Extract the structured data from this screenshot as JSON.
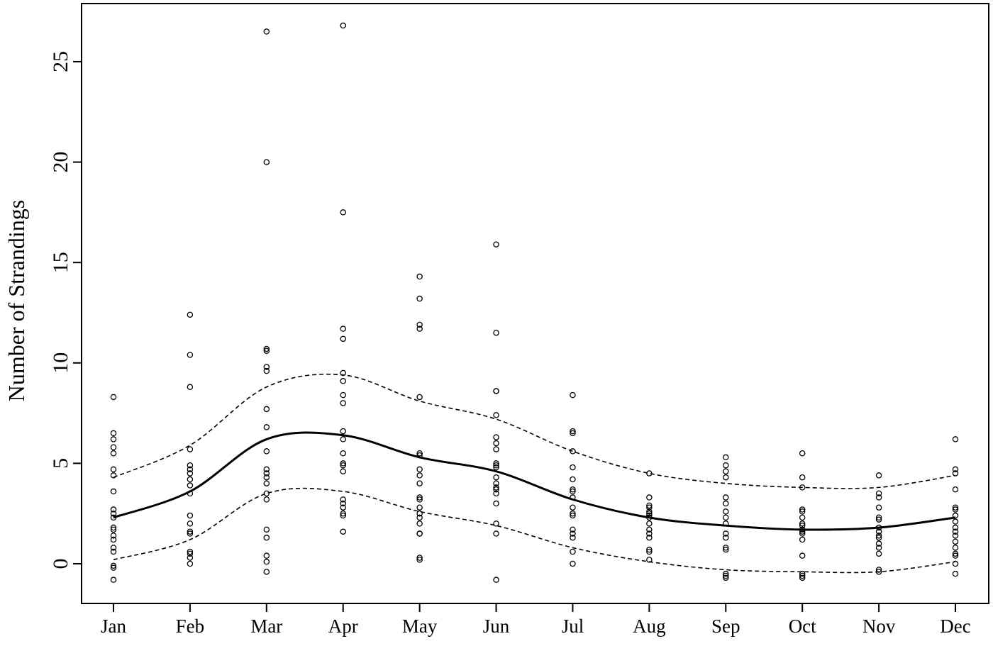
{
  "chart_data": {
    "type": "scatter",
    "title": "",
    "xlabel": "",
    "ylabel": "Number of Strandings",
    "categories": [
      "Jan",
      "Feb",
      "Mar",
      "Apr",
      "May",
      "Jun",
      "Jul",
      "Aug",
      "Sep",
      "Oct",
      "Nov",
      "Dec"
    ],
    "ylim": [
      -1.8,
      27.5
    ],
    "yticks": [
      0,
      5,
      10,
      15,
      20,
      25
    ],
    "grid": false,
    "legend": "none",
    "points": [
      [
        8.3,
        6.5,
        6.2,
        5.8,
        5.5,
        4.7,
        4.4,
        3.6,
        2.7,
        2.5,
        2.3,
        1.8,
        1.7,
        1.4,
        1.2,
        0.8,
        0.6,
        -0.1,
        -0.2,
        -0.8
      ],
      [
        12.4,
        10.4,
        8.8,
        5.7,
        4.9,
        4.7,
        4.5,
        4.2,
        3.9,
        3.5,
        2.4,
        2.0,
        1.6,
        1.5,
        0.6,
        0.5,
        0.3,
        0.0
      ],
      [
        26.5,
        20.0,
        10.7,
        10.6,
        9.8,
        9.6,
        7.7,
        6.8,
        5.6,
        4.7,
        4.5,
        4.3,
        4.0,
        3.5,
        3.2,
        1.7,
        1.3,
        0.4,
        0.1,
        -0.4
      ],
      [
        26.8,
        17.5,
        11.7,
        11.2,
        9.5,
        9.1,
        8.4,
        8.0,
        6.6,
        6.2,
        5.5,
        5.0,
        4.9,
        4.6,
        3.2,
        3.0,
        2.8,
        2.5,
        2.4,
        1.6
      ],
      [
        14.3,
        13.2,
        11.9,
        11.7,
        8.3,
        5.5,
        5.4,
        4.7,
        4.4,
        4.0,
        3.3,
        3.2,
        2.8,
        2.5,
        2.3,
        2.0,
        1.5,
        1.5,
        0.3,
        0.2
      ],
      [
        15.9,
        11.5,
        8.6,
        8.6,
        7.4,
        6.3,
        6.0,
        5.7,
        5.0,
        4.9,
        4.8,
        4.3,
        4.0,
        3.8,
        3.7,
        3.5,
        3.0,
        2.0,
        1.5,
        -0.8
      ],
      [
        8.4,
        6.6,
        6.5,
        5.6,
        4.8,
        4.2,
        3.7,
        3.6,
        3.3,
        2.8,
        2.5,
        2.4,
        1.7,
        1.5,
        1.3,
        0.6,
        0.0
      ],
      [
        4.5,
        3.3,
        2.9,
        2.8,
        2.6,
        2.5,
        2.4,
        2.3,
        2.0,
        1.7,
        1.5,
        1.3,
        0.7,
        0.6,
        0.2
      ],
      [
        5.3,
        4.9,
        4.6,
        4.3,
        3.3,
        3.0,
        2.6,
        2.3,
        2.0,
        1.5,
        1.3,
        0.8,
        0.7,
        -0.5,
        -0.6,
        -0.7
      ],
      [
        5.5,
        4.3,
        3.8,
        2.7,
        2.6,
        2.3,
        2.0,
        1.9,
        1.7,
        1.6,
        1.5,
        1.2,
        0.4,
        -0.5,
        -0.6,
        -0.7
      ],
      [
        4.4,
        3.5,
        3.3,
        2.8,
        2.3,
        2.2,
        1.8,
        1.6,
        1.4,
        1.3,
        1.0,
        0.8,
        0.5,
        -0.3,
        -0.4
      ],
      [
        6.2,
        4.7,
        4.5,
        3.7,
        2.8,
        2.7,
        2.4,
        2.1,
        1.8,
        1.6,
        1.4,
        1.1,
        0.8,
        0.5,
        0.4,
        0.0,
        -0.5
      ]
    ],
    "series": [
      {
        "values": [
          2.3,
          3.6,
          6.2,
          6.4,
          5.3,
          4.6,
          3.2,
          2.3,
          1.9,
          1.7,
          1.8,
          2.3
        ]
      },
      {
        "values": [
          4.3,
          5.9,
          8.8,
          9.4,
          8.1,
          7.2,
          5.6,
          4.5,
          4.0,
          3.8,
          3.8,
          4.4
        ]
      },
      {
        "values": [
          0.2,
          1.2,
          3.5,
          3.6,
          2.6,
          1.9,
          0.8,
          0.1,
          -0.3,
          -0.4,
          -0.4,
          0.1
        ]
      }
    ]
  }
}
